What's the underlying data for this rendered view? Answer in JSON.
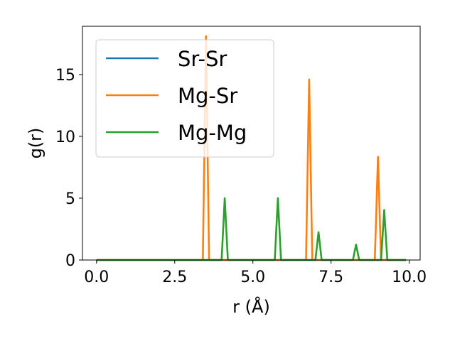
{
  "chart_data": {
    "type": "line",
    "title": "",
    "xlabel": "r (Å)",
    "ylabel": "g(r)",
    "xlim": [
      -0.45,
      10.35
    ],
    "ylim": [
      0,
      18.9
    ],
    "x_ticks": [
      "0.0",
      "2.5",
      "5.0",
      "7.5",
      "10.0"
    ],
    "y_ticks": [
      "0",
      "5",
      "10",
      "15"
    ],
    "grid": false,
    "legend_position": "upper left",
    "series": [
      {
        "name": "Sr-Sr",
        "color": "#1f77b4",
        "x": [
          0.0,
          9.9
        ],
        "y": [
          0,
          0
        ]
      },
      {
        "name": "Mg-Sr",
        "color": "#ff7f0e",
        "x": [
          0.0,
          3.4,
          3.5,
          3.6,
          6.7,
          6.8,
          6.9,
          8.9,
          9.0,
          9.1,
          9.9
        ],
        "y": [
          0,
          0,
          18.1,
          0,
          0,
          14.6,
          0,
          0,
          8.35,
          0,
          0
        ]
      },
      {
        "name": "Mg-Mg",
        "color": "#2ca02c",
        "x": [
          0.0,
          4.0,
          4.1,
          4.2,
          5.7,
          5.8,
          5.9,
          7.0,
          7.1,
          7.2,
          8.2,
          8.3,
          8.4,
          9.1,
          9.2,
          9.3,
          9.9
        ],
        "y": [
          0,
          0,
          5.0,
          0,
          0,
          5.0,
          0,
          0,
          2.25,
          0,
          0,
          1.25,
          0,
          0,
          4.05,
          0,
          0
        ]
      }
    ]
  }
}
